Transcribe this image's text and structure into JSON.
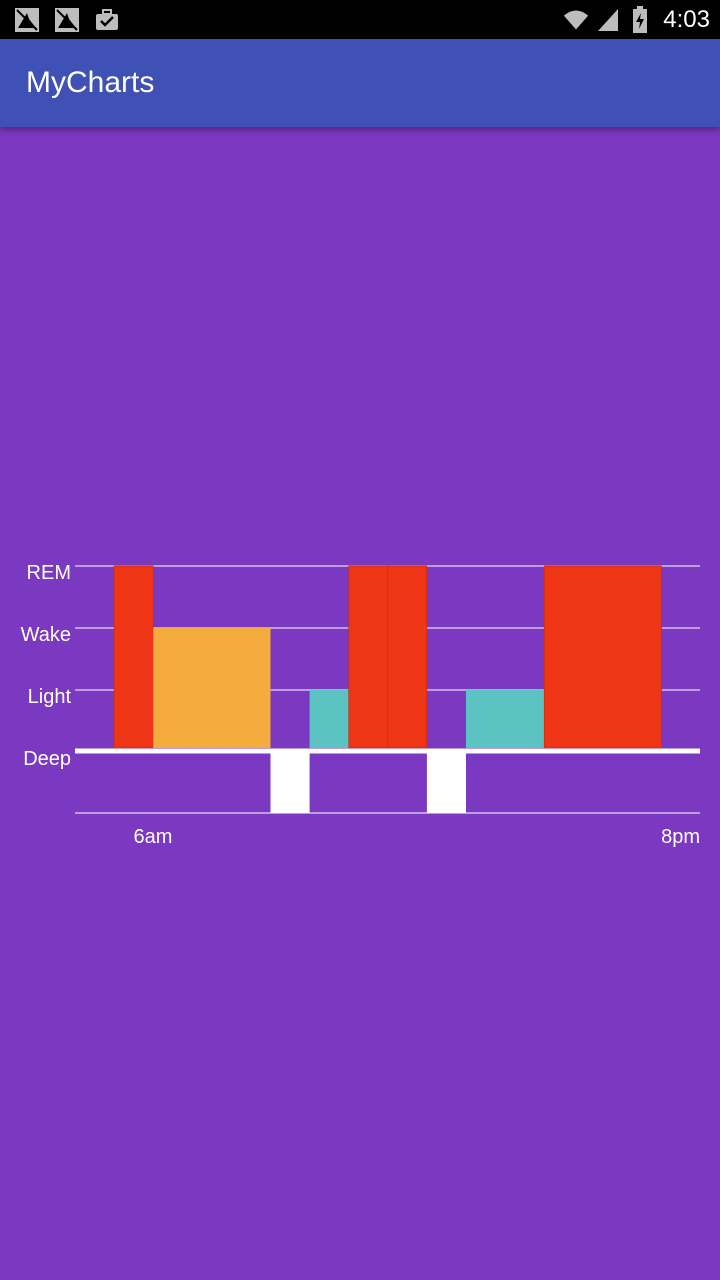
{
  "status_bar": {
    "time": "4:03",
    "icons_left": [
      "notification-icon",
      "notification-icon",
      "briefcase-check-icon"
    ],
    "icons_right": [
      "wifi-icon",
      "signal-icon",
      "battery-charging-icon"
    ]
  },
  "app_bar": {
    "title": "MyCharts"
  },
  "colors": {
    "background": "#7b38c0",
    "app_bar": "#3f51b5",
    "rem": "#ee3516",
    "wake": "#f5ac3e",
    "light": "#5bc4c2",
    "deep": "#ffffff",
    "grid": "#ffffff"
  },
  "chart_data": {
    "type": "bar",
    "title": "",
    "xlabel": "",
    "ylabel": "",
    "x_tick_labels": [
      "6am",
      "8pm"
    ],
    "y_categories": [
      "Deep",
      "Light",
      "Wake",
      "REM"
    ],
    "grid": true,
    "segments": [
      {
        "stage": "REM",
        "start": 1,
        "end": 2
      },
      {
        "stage": "Wake",
        "start": 2,
        "end": 5
      },
      {
        "stage": "Deep",
        "start": 5,
        "end": 6
      },
      {
        "stage": "Light",
        "start": 6,
        "end": 7
      },
      {
        "stage": "REM",
        "start": 7,
        "end": 8
      },
      {
        "stage": "REM",
        "start": 8,
        "end": 9
      },
      {
        "stage": "Deep",
        "start": 9,
        "end": 10
      },
      {
        "stage": "Light",
        "start": 10,
        "end": 12
      },
      {
        "stage": "REM",
        "start": 12,
        "end": 15
      }
    ]
  }
}
